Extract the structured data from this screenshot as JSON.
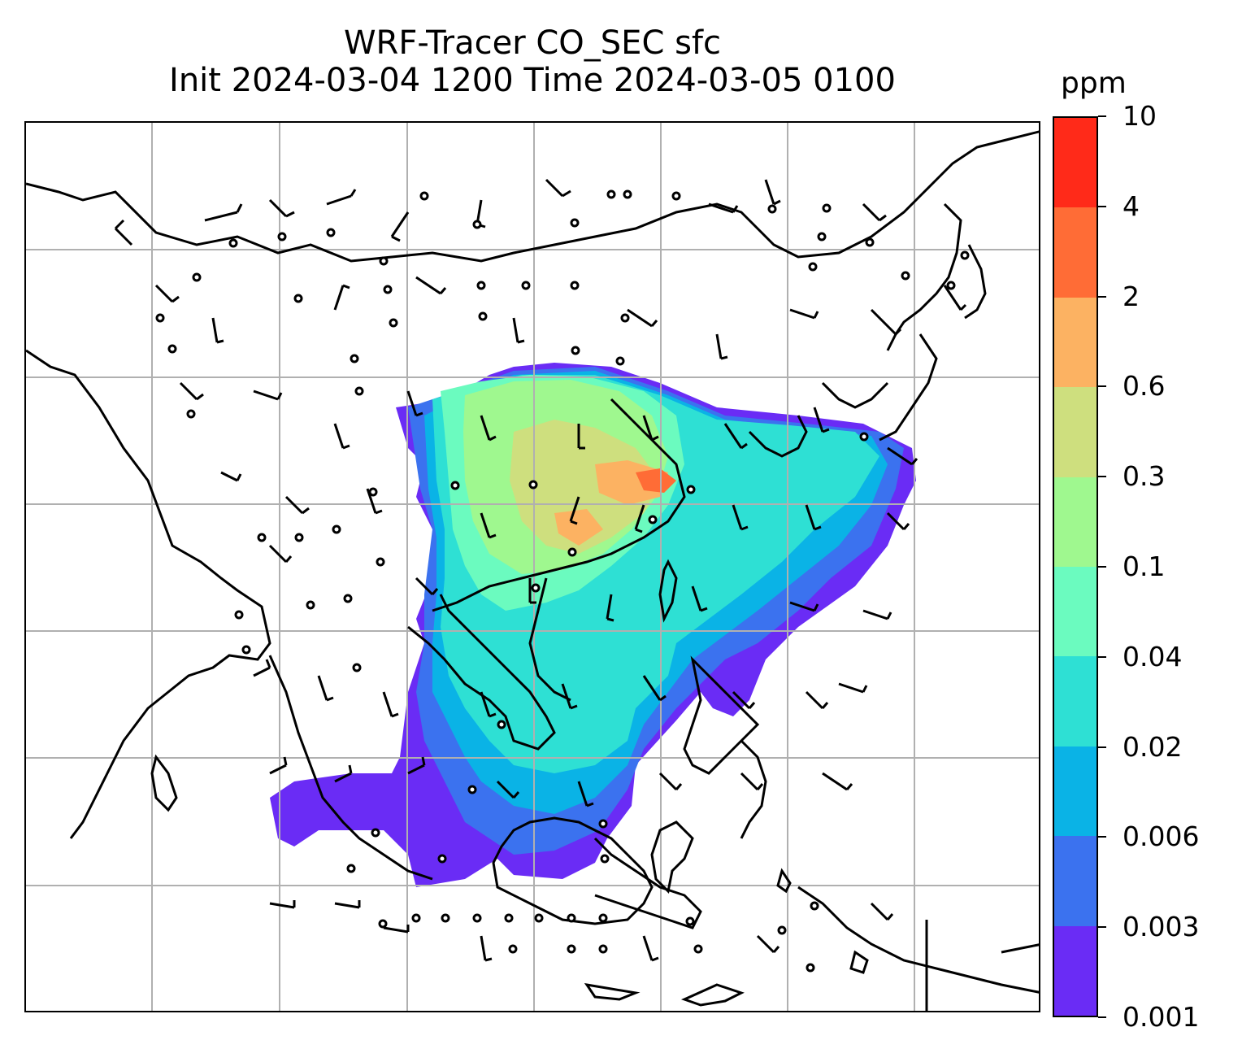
{
  "title": {
    "line1": "WRF-Tracer CO_SEC sfc",
    "line2": "Init 2024-03-04 1200 Time 2024-03-05 0100"
  },
  "colorbar": {
    "unit": "ppm",
    "ticks": [
      "0.001",
      "0.003",
      "0.006",
      "0.02",
      "0.04",
      "0.1",
      "0.3",
      "0.6",
      "2",
      "4",
      "10"
    ],
    "colors": [
      "#6a2cf5",
      "#3b72ef",
      "#0ab3e6",
      "#2ee0d4",
      "#6bfbbf",
      "#9ff88f",
      "#cedf7e",
      "#fcb262",
      "#ff6c36",
      "#ff2a19"
    ]
  },
  "map": {
    "land_border_color": "#000000",
    "gridline_color": "#b0b0b0",
    "wind_barbs": "black barbs and calm circles over the domain"
  }
}
